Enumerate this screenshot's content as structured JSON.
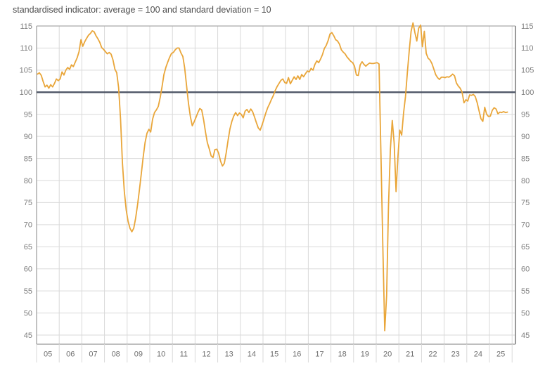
{
  "title": "standardised indicator: average = 100 and standard deviation = 10",
  "chart_data": {
    "type": "line",
    "title": "standardised indicator: average = 100 and standard deviation = 10",
    "frequency": "monthly",
    "x_start_year": 2005,
    "x_tick_labels": [
      "05",
      "06",
      "07",
      "08",
      "09",
      "10",
      "11",
      "12",
      "13",
      "14",
      "15",
      "16",
      "17",
      "18",
      "19",
      "20",
      "21",
      "22",
      "23",
      "24",
      "25"
    ],
    "y_ticks": [
      45,
      50,
      55,
      60,
      65,
      70,
      75,
      80,
      85,
      90,
      95,
      100,
      105,
      110,
      115
    ],
    "ylim": [
      43,
      117
    ],
    "xlabel": "",
    "ylabel": "",
    "grid": true,
    "legend": "none",
    "reference_line_value": 100,
    "series": [
      {
        "name": "standardised indicator",
        "values_by_year": {
          "2005": [
            104.1,
            104.4,
            103.8,
            102.4,
            101.2,
            101.6,
            100.9,
            101.7,
            101.2,
            102.0,
            103.0,
            102.6
          ],
          "2006": [
            103.0,
            104.6,
            103.9,
            105.0,
            105.6,
            105.2,
            106.2,
            105.8,
            106.8,
            107.8,
            109.2,
            111.9
          ],
          "2007": [
            110.4,
            111.4,
            112.2,
            112.9,
            113.3,
            113.9,
            113.7,
            112.8,
            112.1,
            111.3,
            110.1,
            109.7
          ],
          "2008": [
            109.2,
            108.7,
            109.0,
            108.6,
            107.3,
            105.2,
            104.4,
            101.0,
            94.0,
            84.0,
            77.5,
            73.3
          ],
          "2009": [
            70.8,
            69.2,
            68.4,
            69.2,
            71.5,
            74.5,
            77.8,
            81.5,
            85.3,
            88.6,
            90.7,
            91.6
          ],
          "2010": [
            91.0,
            93.9,
            95.4,
            96.0,
            96.8,
            98.8,
            101.2,
            104.0,
            105.6,
            106.8,
            107.9,
            108.8
          ],
          "2011": [
            109.0,
            109.6,
            110.0,
            110.0,
            108.9,
            108.1,
            105.5,
            101.5,
            97.5,
            94.5,
            92.4,
            93.3
          ],
          "2012": [
            94.3,
            95.4,
            96.3,
            96.0,
            93.8,
            91.0,
            88.6,
            87.2,
            85.6,
            85.2,
            87.0,
            87.1
          ],
          "2013": [
            86.2,
            84.4,
            83.3,
            83.9,
            86.3,
            89.2,
            91.7,
            93.4,
            94.6,
            95.4,
            94.7,
            95.3
          ],
          "2014": [
            95.0,
            94.2,
            95.7,
            96.1,
            95.4,
            96.2,
            95.6,
            94.4,
            93.1,
            91.9,
            91.4,
            92.6
          ],
          "2015": [
            93.9,
            95.3,
            96.5,
            97.4,
            98.4,
            99.3,
            100.4,
            101.3,
            102.0,
            102.7,
            103.0,
            102.2
          ],
          "2016": [
            102.0,
            103.3,
            101.9,
            102.7,
            103.5,
            102.9,
            103.7,
            102.9,
            104.0,
            103.5,
            104.2,
            104.8
          ],
          "2017": [
            104.6,
            105.4,
            105.0,
            106.3,
            107.1,
            106.7,
            107.5,
            108.5,
            109.9,
            110.6,
            111.7,
            113.2
          ],
          "2018": [
            113.5,
            112.8,
            111.9,
            111.6,
            110.9,
            109.6,
            109.1,
            108.7,
            108.0,
            107.5,
            107.0,
            106.7
          ],
          "2019": [
            105.9,
            103.9,
            103.8,
            106.2,
            106.9,
            106.3,
            105.9,
            106.3,
            106.6,
            106.5,
            106.5,
            106.6
          ],
          "2020": [
            106.7,
            106.4,
            86.0,
            65.0,
            46.0,
            54.0,
            74.0,
            87.0,
            93.6,
            88.5,
            77.5,
            85.5
          ],
          "2021": [
            91.4,
            90.3,
            95.3,
            99.0,
            104.5,
            109.5,
            113.8,
            115.7,
            113.5,
            111.6,
            114.5,
            115.2
          ],
          "2022": [
            110.3,
            113.8,
            108.8,
            107.7,
            107.3,
            106.5,
            105.3,
            104.0,
            103.3,
            102.9,
            103.4,
            103.4
          ],
          "2023": [
            103.3,
            103.5,
            103.4,
            103.7,
            104.1,
            103.7,
            102.1,
            101.4,
            100.9,
            100.0,
            97.6,
            98.3
          ],
          "2024": [
            98.0,
            99.4,
            99.3,
            99.5,
            99.0,
            97.6,
            95.8,
            94.0,
            93.4,
            96.6,
            95.0,
            94.5
          ],
          "2025": [
            94.6,
            95.9,
            96.5,
            96.2,
            95.1,
            95.5,
            95.4,
            95.6,
            95.4,
            95.5
          ]
        }
      }
    ],
    "colors": {
      "line": "#e9a63a",
      "reference_line": "#4d5565",
      "grid": "#d9d9d9",
      "axis_border": "#a9a9a9",
      "axis_border_right": "#9a9a9a",
      "tick_label": "#7d7d7d",
      "x_tick_label": "#6e6e6e",
      "title": "#4f4f4f",
      "background": "#ffffff"
    }
  }
}
